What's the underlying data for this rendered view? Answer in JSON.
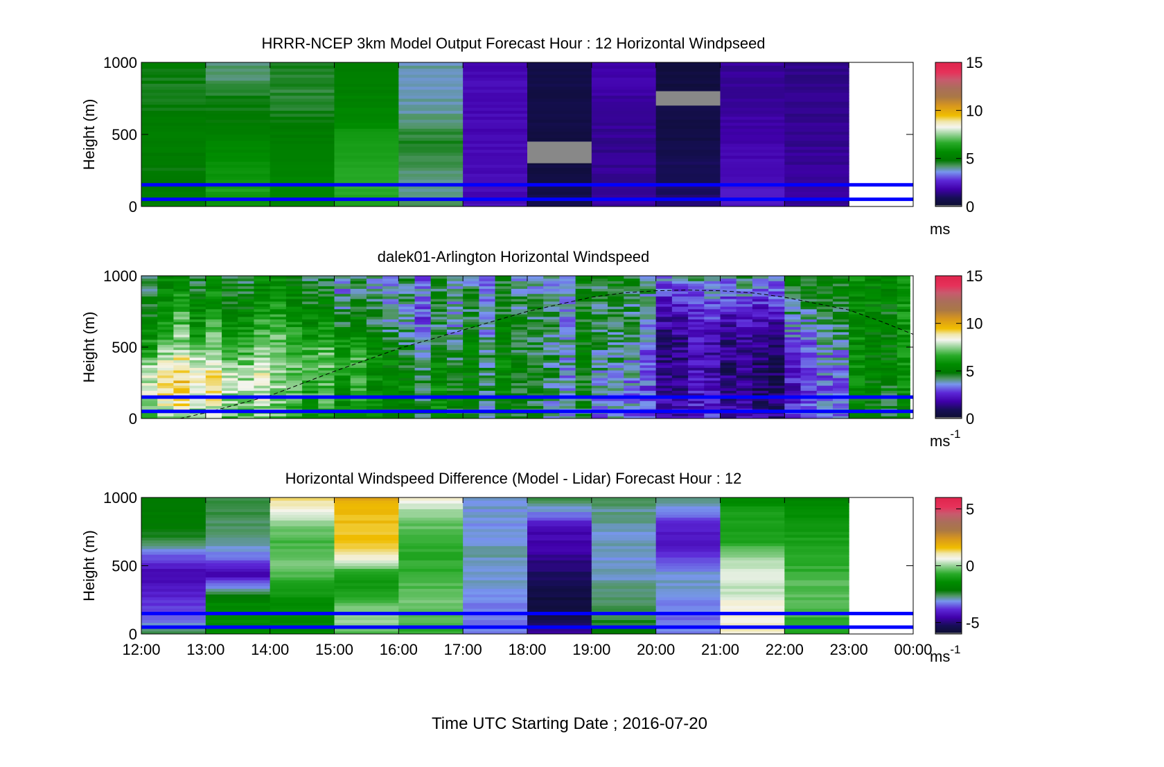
{
  "figure": {
    "xlabel": "Time UTC  Starting Date ; 2016-07-20",
    "x_tick_labels": [
      "12:00",
      "13:00",
      "14:00",
      "15:00",
      "16:00",
      "17:00",
      "18:00",
      "19:00",
      "20:00",
      "21:00",
      "22:00",
      "23:00",
      "00:00"
    ]
  },
  "chart_data": [
    {
      "type": "heatmap",
      "title": "HRRR-NCEP 3km Model Output   Forecast Hour : 12 Horizontal Windpseed",
      "ylabel": "Height (m)",
      "ylim": [
        0,
        1000
      ],
      "y_ticks": [
        0,
        500,
        1000
      ],
      "x_hours": [
        12,
        13,
        14,
        15,
        16,
        17,
        18,
        19,
        20,
        21,
        22,
        23,
        24
      ],
      "colorbar": {
        "min": 0,
        "max": 15,
        "ticks": [
          0,
          5,
          10,
          15
        ],
        "unit": "ms",
        "unit_sup": ""
      },
      "reference_lines_m": [
        150,
        50
      ],
      "reference_line_color": "#0000ff",
      "column_profiles": [
        [
          5.2,
          5.0,
          4.8,
          4.9,
          5.1,
          5.0,
          4.8,
          4.6,
          4.7,
          4.9
        ],
        [
          5.8,
          6.3,
          6.0,
          5.8,
          5.4,
          5.0,
          4.7,
          4.6,
          4.2,
          4.2
        ],
        [
          5.4,
          5.6,
          5.3,
          5.2,
          5.0,
          4.9,
          4.6,
          4.5,
          4.5,
          4.6
        ],
        [
          6.4,
          6.6,
          6.5,
          6.3,
          6.1,
          5.8,
          5.4,
          5.2,
          5.0,
          5.0
        ],
        [
          4.2,
          4.0,
          4.1,
          4.4,
          4.6,
          4.3,
          3.9,
          3.9,
          3.9,
          3.9
        ],
        [
          2.1,
          2.0,
          2.0,
          2.0,
          2.0,
          2.0,
          2.0,
          2.0,
          2.0,
          2.0
        ],
        [
          0.9,
          0.6,
          0.5,
          0.4,
          0.5,
          0.6,
          0.6,
          0.6,
          0.6,
          0.7
        ],
        [
          1.8,
          1.6,
          1.6,
          1.5,
          1.5,
          1.6,
          1.6,
          1.7,
          1.8,
          1.8
        ],
        [
          1.2,
          1.0,
          0.9,
          0.8,
          0.6,
          0.5,
          0.5,
          0.5,
          0.4,
          0.4
        ],
        [
          2.2,
          2.4,
          2.1,
          2.0,
          1.8,
          1.8,
          1.7,
          1.6,
          1.6,
          1.6
        ],
        [
          1.6,
          1.6,
          1.6,
          1.6,
          1.5,
          1.5,
          1.5,
          1.5,
          1.4,
          1.4
        ]
      ],
      "missing_blocks": [
        {
          "hour_start": 18,
          "hour_end": 19,
          "y0": 300,
          "y1": 450
        },
        {
          "hour_start": 20,
          "hour_end": 21,
          "y0": 700,
          "y1": 800
        }
      ]
    },
    {
      "type": "heatmap",
      "title": "dalek01-Arlington  Horizontal Windspeed",
      "ylabel": "Height (m)",
      "ylim": [
        0,
        1000
      ],
      "y_ticks": [
        0,
        500,
        1000
      ],
      "x_hours": [
        12,
        13,
        14,
        15,
        16,
        17,
        18,
        19,
        20,
        21,
        22,
        23,
        24
      ],
      "colorbar": {
        "min": 0,
        "max": 15,
        "ticks": [
          0,
          5,
          10,
          15
        ],
        "unit": "ms",
        "unit_sup": "-1"
      },
      "reference_lines_m": [
        150,
        50
      ],
      "reference_line_color": "#0000ff",
      "data_end_hour": 23.95,
      "boundary_layer_height_m": [
        [
          12.6,
          0
        ],
        [
          13.0,
          40
        ],
        [
          14.0,
          160
        ],
        [
          15.0,
          330
        ],
        [
          16.0,
          490
        ],
        [
          17.0,
          620
        ],
        [
          18.0,
          750
        ],
        [
          19.0,
          850
        ],
        [
          19.5,
          880
        ],
        [
          20.0,
          895
        ],
        [
          20.5,
          900
        ],
        [
          21.0,
          895
        ],
        [
          21.5,
          880
        ],
        [
          22.0,
          850
        ],
        [
          23.0,
          760
        ],
        [
          23.5,
          680
        ],
        [
          24.0,
          590
        ]
      ],
      "hourly_profiles": [
        [
          6.5,
          8.2,
          8.8,
          8.5,
          7.5,
          6.6,
          6.0,
          5.5,
          5.0,
          4.8
        ],
        [
          7.4,
          8.0,
          8.4,
          8.3,
          7.5,
          6.6,
          6.2,
          5.8,
          5.3,
          5.0
        ],
        [
          6.3,
          6.6,
          6.9,
          7.1,
          6.8,
          6.3,
          5.8,
          5.4,
          5.1,
          4.8
        ],
        [
          5.6,
          6.1,
          6.3,
          6.6,
          6.9,
          6.2,
          5.4,
          4.7,
          4.2,
          3.8
        ],
        [
          4.9,
          5.1,
          5.0,
          4.6,
          4.2,
          3.7,
          3.2,
          3.4,
          3.7,
          4.0
        ],
        [
          4.7,
          4.8,
          4.9,
          4.9,
          4.8,
          4.6,
          4.4,
          4.1,
          3.9,
          3.6
        ],
        [
          4.9,
          5.0,
          5.0,
          5.1,
          5.1,
          5.0,
          4.9,
          4.8,
          4.4,
          4.1
        ],
        [
          3.0,
          3.1,
          3.2,
          3.6,
          3.9,
          4.1,
          4.1,
          4.0,
          4.1,
          4.3
        ],
        [
          2.7,
          2.5,
          2.3,
          2.1,
          2.0,
          2.1,
          2.3,
          2.6,
          3.3,
          3.9
        ],
        [
          1.6,
          1.2,
          0.9,
          0.8,
          0.9,
          1.1,
          1.5,
          2.1,
          2.7,
          3.4
        ],
        [
          2.1,
          1.6,
          1.3,
          1.5,
          1.8,
          2.4,
          2.9,
          3.4,
          3.9,
          4.3
        ],
        [
          4.5,
          4.6,
          4.8,
          4.9,
          5.0,
          5.0,
          5.0,
          5.0,
          5.0,
          5.0
        ]
      ]
    },
    {
      "type": "heatmap",
      "title": "Horizontal Windspeed Difference (Model - Lidar) Forecast Hour : 12",
      "ylabel": "Height (m)",
      "ylim": [
        0,
        1000
      ],
      "y_ticks": [
        0,
        500,
        1000
      ],
      "x_hours": [
        12,
        13,
        14,
        15,
        16,
        17,
        18,
        19,
        20,
        21,
        22,
        23,
        24
      ],
      "colorbar": {
        "min": -6,
        "max": 6,
        "ticks": [
          -5,
          0,
          5
        ],
        "unit": "ms",
        "unit_sup": "-1"
      },
      "reference_lines_m": [
        150,
        50
      ],
      "reference_line_color": "#0000ff",
      "column_profiles": [
        [
          -2.4,
          -3.4,
          -3.8,
          -4.2,
          -4.5,
          -3.6,
          -2.6,
          -2.1,
          -2.0,
          -2.2
        ],
        [
          -1.6,
          -1.4,
          -1.6,
          -3.0,
          -4.6,
          -3.4,
          -2.8,
          -2.6,
          -2.5,
          -2.5
        ],
        [
          -1.6,
          -1.7,
          -1.4,
          -1.1,
          -0.4,
          -0.2,
          -0.5,
          -0.2,
          0.6,
          1.3
        ],
        [
          -0.5,
          0.0,
          -0.3,
          -1.2,
          -0.9,
          0.8,
          1.4,
          1.6,
          1.6,
          2.0
        ],
        [
          -0.8,
          -0.4,
          -0.2,
          -0.4,
          -0.6,
          -0.8,
          -0.6,
          -0.4,
          0.0,
          0.8
        ],
        [
          -3.2,
          -3.4,
          -3.3,
          -3.1,
          -3.0,
          -2.9,
          -3.0,
          -3.1,
          -3.1,
          -3.0
        ],
        [
          -4.6,
          -5.6,
          -5.7,
          -5.5,
          -5.2,
          -4.8,
          -4.5,
          -4.4,
          -3.2,
          -2.6
        ],
        [
          -2.2,
          -2.4,
          -2.6,
          -2.8,
          -3.0,
          -3.1,
          -3.0,
          -2.9,
          -2.8,
          -2.6
        ],
        [
          -3.2,
          -3.5,
          -3.2,
          -3.1,
          -3.0,
          -3.7,
          -4.3,
          -4.1,
          -3.2,
          -2.8
        ],
        [
          0.9,
          0.8,
          0.8,
          0.2,
          0.6,
          0.0,
          -0.8,
          -1.0,
          -1.0,
          -1.6
        ],
        [
          -0.8,
          -0.6,
          -0.4,
          -0.4,
          -0.6,
          -0.8,
          -0.9,
          -1.2,
          -1.4,
          -1.7
        ]
      ]
    }
  ]
}
